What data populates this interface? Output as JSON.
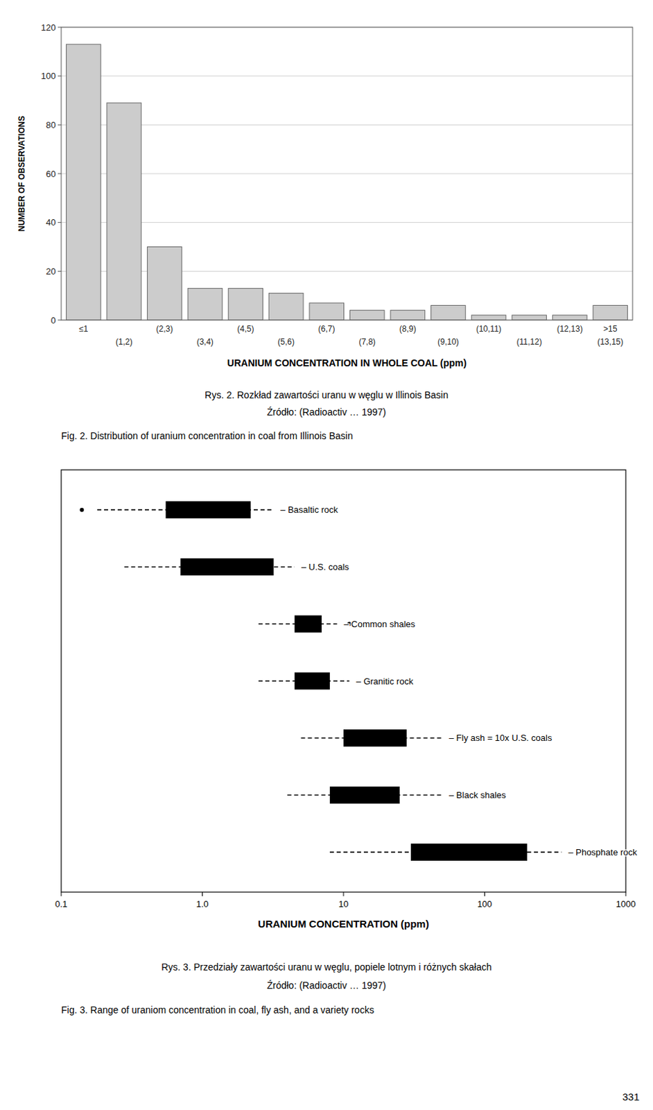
{
  "chart_data": [
    {
      "type": "bar",
      "title": "Rys. 2. Rozkład zawartości uranu w węglu w Illinois Basin",
      "subtitle": "Źródło: (Radioactiv … 1997)",
      "annotations": [
        {
          "text": "Fig. 2. Distribution of uranium concentration in coal from Illinois Basin"
        },
        {
          "text": ">15",
          "category": "(13,15)"
        }
      ],
      "xlabel": "URANIUM CONCENTRATION IN WHOLE COAL (ppm)",
      "ylabel": "NUMBER OF OBSERVATIONS",
      "categories": [
        "≤1",
        "(1,2)",
        "(2,3)",
        "(3,4)",
        "(4,5)",
        "(5,6)",
        "(6,7)",
        "(7,8)",
        "(8,9)",
        "(9,10)",
        "(10,11)",
        "(11,12)",
        "(12,13)",
        "(13,15)"
      ],
      "values": [
        113,
        89,
        30,
        13,
        13,
        11,
        7,
        4,
        4,
        6,
        2,
        2,
        2,
        6
      ],
      "color": "#cccccc",
      "ylim": [
        0,
        120
      ],
      "yticks": [
        0,
        20,
        40,
        60,
        80,
        100,
        120
      ],
      "grid": true
    },
    {
      "type": "range",
      "orientation": "horizontal",
      "title": "Rys. 3. Przedziały zawartości uranu w węglu, popiele lotnym i różnych skałach",
      "subtitle": "Źródło: (Radioactiv … 1997)",
      "annotations": [
        {
          "text": "Fig. 3. Range of uraniom concentration in coal, fly ash, and a variety rocks"
        },
        {
          "text": "331"
        }
      ],
      "xlabel": "URANIUM CONCENTRATION (ppm)",
      "log": "x",
      "xlim": [
        0.1,
        1000
      ],
      "xticks": [
        0.1,
        {
          "value": 1,
          "label": "1.0"
        },
        10,
        100,
        1000
      ],
      "categories": [
        "– Basaltic rock",
        "– U.S. coals",
        "– Common shales",
        "– Granitic rock",
        "– Fly ash = 10x U.S. coals",
        "– Black shales",
        "– Phosphate rock"
      ],
      "whisker_low": [
        0.18,
        0.28,
        2.5,
        2.5,
        5.0,
        4.0,
        8.0
      ],
      "box_low": [
        0.55,
        0.7,
        4.5,
        4.5,
        10.0,
        8.0,
        30.0
      ],
      "box_high": [
        2.2,
        3.2,
        7.0,
        8.0,
        28.0,
        25.0,
        200.0
      ],
      "whisker_high": [
        3.2,
        4.5,
        9.0,
        11.0,
        50.0,
        50.0,
        350.0
      ],
      "points_low": [
        0.14,
        null,
        null,
        null,
        null,
        null,
        null
      ],
      "points_high": [
        null,
        null,
        11.0,
        null,
        null,
        null,
        500.0
      ]
    }
  ]
}
